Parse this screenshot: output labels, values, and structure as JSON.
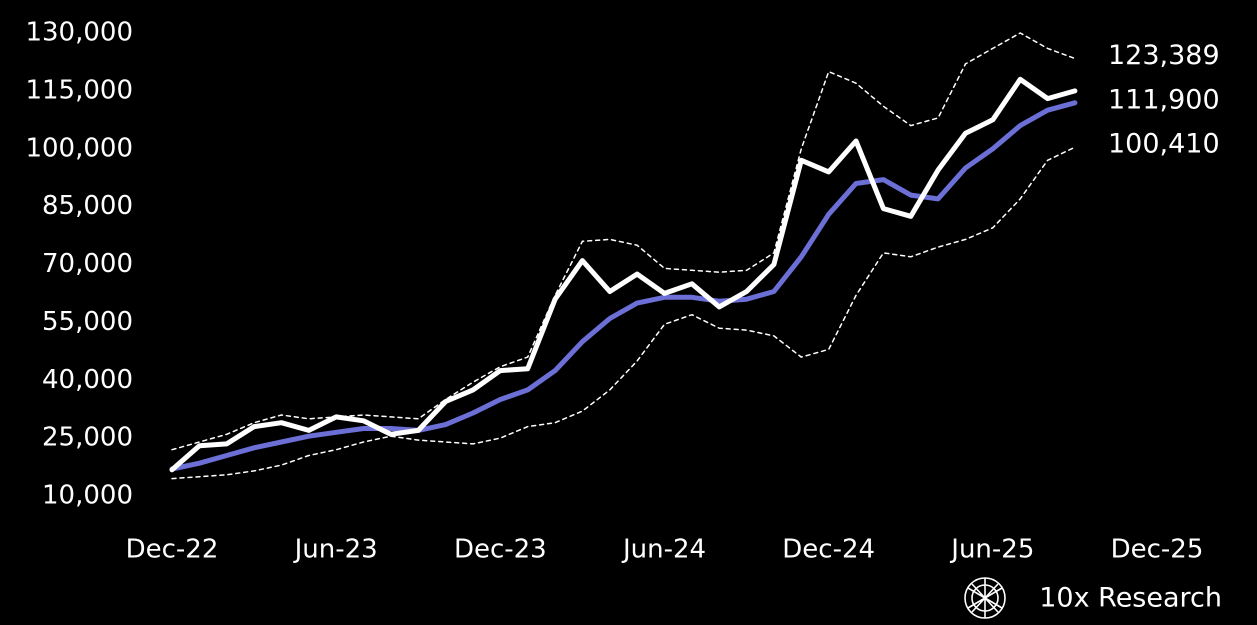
{
  "chart_data": {
    "type": "line",
    "categories": [
      "Dec-22",
      null,
      null,
      null,
      null,
      null,
      "Jun-23",
      null,
      null,
      null,
      null,
      null,
      "Dec-23",
      null,
      null,
      null,
      null,
      null,
      "Jun-24",
      null,
      null,
      null,
      null,
      null,
      "Dec-24",
      null,
      null,
      null,
      null,
      null,
      "Jun-25",
      null,
      null,
      null,
      null,
      null,
      "Dec-25"
    ],
    "series": [
      {
        "color": "#ffffff",
        "dash": true,
        "values": [
          22000,
          24000,
          26000,
          29000,
          31000,
          30000,
          30500,
          31000,
          30500,
          30000,
          35000,
          39500,
          43500,
          46000,
          62000,
          76000,
          76500,
          75000,
          69000,
          68500,
          68000,
          68500,
          73000,
          100000,
          120000,
          117000,
          111000,
          106000,
          108000,
          122000,
          126000,
          130000,
          126000,
          123389,
          null,
          null,
          null
        ],
        "value_labels": [
          null,
          null,
          null,
          null,
          null,
          null,
          null,
          null,
          null,
          null,
          null,
          null,
          null,
          null,
          null,
          null,
          null,
          null,
          null,
          null,
          null,
          null,
          null,
          null,
          null,
          null,
          null,
          null,
          null,
          null,
          null,
          null,
          null,
          "123,389",
          null,
          null,
          null
        ]
      },
      {
        "color": "#ffffff",
        "dash": true,
        "values": [
          14500,
          15000,
          15500,
          16500,
          18000,
          20500,
          22000,
          24000,
          25500,
          24500,
          24000,
          23500,
          25000,
          28000,
          29000,
          32000,
          37500,
          45000,
          54500,
          57000,
          53500,
          53000,
          51500,
          46000,
          48000,
          62000,
          73000,
          72000,
          74500,
          76500,
          79500,
          87000,
          97000,
          100410,
          null,
          null,
          null
        ],
        "value_labels": [
          null,
          null,
          null,
          null,
          null,
          null,
          null,
          null,
          null,
          null,
          null,
          null,
          null,
          null,
          null,
          null,
          null,
          null,
          null,
          null,
          null,
          null,
          null,
          null,
          null,
          null,
          null,
          null,
          null,
          null,
          null,
          null,
          null,
          "100,410",
          null,
          null,
          null
        ]
      },
      {
        "color": "#6b6fd6",
        "dash": false,
        "values": [
          17000,
          18500,
          20500,
          22500,
          24000,
          25500,
          26500,
          27500,
          27500,
          27000,
          28500,
          31500,
          35000,
          37500,
          42500,
          50000,
          56000,
          60000,
          61500,
          61500,
          60500,
          61000,
          63000,
          72000,
          83000,
          91000,
          92000,
          88000,
          87000,
          95000,
          100000,
          106000,
          110000,
          111900,
          null,
          null,
          null
        ],
        "value_labels": [
          null,
          null,
          null,
          null,
          null,
          null,
          null,
          null,
          null,
          null,
          null,
          null,
          null,
          null,
          null,
          null,
          null,
          null,
          null,
          null,
          null,
          null,
          null,
          null,
          null,
          null,
          null,
          null,
          null,
          null,
          null,
          null,
          null,
          "111,900",
          null,
          null,
          null
        ]
      },
      {
        "color": "#ffffff",
        "dash": false,
        "values": [
          16800,
          23000,
          23500,
          28000,
          29000,
          27000,
          30500,
          29500,
          26000,
          27000,
          34500,
          37500,
          42500,
          43000,
          61000,
          71000,
          63000,
          67500,
          62500,
          65000,
          59000,
          63000,
          70000,
          97000,
          94000,
          102000,
          84500,
          82500,
          94500,
          104000,
          107500,
          118000,
          113000,
          115000,
          null,
          null,
          null
        ]
      }
    ],
    "ylim": [
      10000,
      130000
    ],
    "yticks": [
      {
        "value": 10000,
        "label": "10,000"
      },
      {
        "value": 25000,
        "label": "25,000"
      },
      {
        "value": 40000,
        "label": "40,000"
      },
      {
        "value": 55000,
        "label": "55,000"
      },
      {
        "value": 70000,
        "label": "70,000"
      },
      {
        "value": 85000,
        "label": "85,000"
      },
      {
        "value": 100000,
        "label": "100,000"
      },
      {
        "value": 115000,
        "label": "115,000"
      },
      {
        "value": 130000,
        "label": "130,000"
      }
    ],
    "grid": false
  },
  "brand": "10x Research"
}
